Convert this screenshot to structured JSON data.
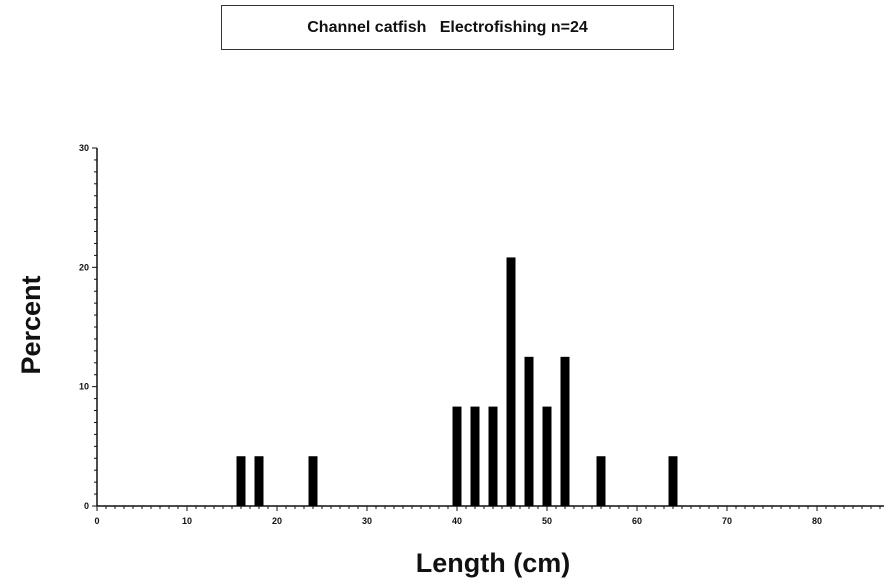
{
  "chart_data": {
    "type": "bar",
    "title": "Channel catfish   Electrofishing n=24",
    "xlabel": "Length (cm)",
    "ylabel": "Percent",
    "xlim": [
      0,
      88
    ],
    "ylim": [
      0,
      30
    ],
    "xticks": [
      "0",
      "10",
      "20",
      "30",
      "40",
      "50",
      "60",
      "70",
      "80"
    ],
    "yticks": [
      "0",
      "10",
      "20",
      "30"
    ],
    "x": [
      16,
      18,
      24,
      40,
      42,
      44,
      46,
      48,
      50,
      52,
      56,
      64
    ],
    "values": [
      4.17,
      4.17,
      4.17,
      8.33,
      8.33,
      8.33,
      20.83,
      12.5,
      8.33,
      12.5,
      4.17,
      4.17
    ],
    "bar_color": "#000000"
  }
}
